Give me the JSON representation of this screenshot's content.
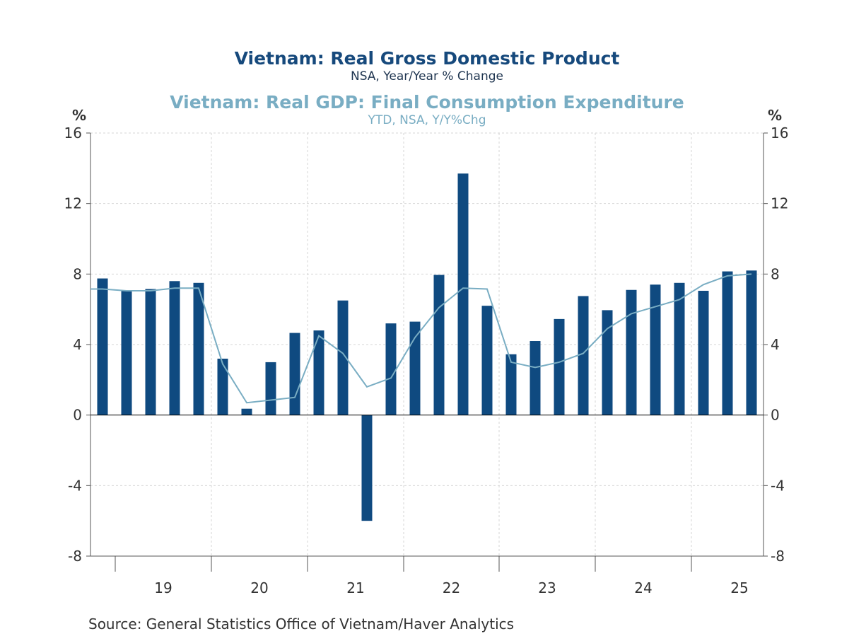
{
  "chart_data": {
    "type": "bar+line",
    "titles": [
      {
        "title": "Vietnam: Real Gross Domestic Product",
        "subtitle": "NSA, Year/Year % Change",
        "color": "#16497c"
      },
      {
        "title": "Vietnam: Real GDP: Final Consumption Expenditure",
        "subtitle": "YTD, NSA, Y/Y%Chg",
        "color": "#79adc3"
      }
    ],
    "y_unit_left": "%",
    "y_unit_right": "%",
    "ylim": [
      -8,
      16
    ],
    "yticks": [
      -8,
      -4,
      0,
      4,
      8,
      12,
      16
    ],
    "x_tick_labels": [
      "19",
      "20",
      "21",
      "22",
      "23",
      "24",
      "25"
    ],
    "grid": true,
    "categories": [
      "2018Q4",
      "2019Q1",
      "2019Q2",
      "2019Q3",
      "2019Q4",
      "2020Q1",
      "2020Q2",
      "2020Q3",
      "2020Q4",
      "2021Q1",
      "2021Q2",
      "2021Q3",
      "2021Q4",
      "2022Q1",
      "2022Q2",
      "2022Q3",
      "2022Q4",
      "2023Q1",
      "2023Q2",
      "2023Q3",
      "2023Q4",
      "2024Q1",
      "2024Q2",
      "2024Q3",
      "2024Q4",
      "2025Q1",
      "2025Q2",
      "2025Q3"
    ],
    "series": [
      {
        "type": "bar",
        "color": "#0f4a80",
        "values": [
          7.75,
          7.03,
          7.15,
          7.6,
          7.5,
          3.2,
          0.36,
          3.0,
          4.66,
          4.8,
          6.5,
          -6.0,
          5.2,
          5.3,
          7.95,
          13.7,
          6.2,
          3.45,
          4.2,
          5.45,
          6.75,
          5.95,
          7.1,
          7.4,
          7.5,
          7.05,
          8.15,
          8.2
        ]
      },
      {
        "type": "line",
        "color": "#79adc3",
        "values": [
          7.15,
          7.05,
          7.05,
          7.2,
          7.2,
          2.9,
          0.7,
          0.85,
          1.0,
          4.5,
          3.5,
          1.6,
          2.1,
          4.4,
          6.1,
          7.2,
          7.15,
          3.0,
          2.7,
          3.0,
          3.5,
          4.9,
          5.75,
          6.15,
          6.55,
          7.4,
          7.9,
          8.0
        ]
      }
    ]
  },
  "source": "Source:  General Statistics Office of Vietnam/Haver Analytics"
}
